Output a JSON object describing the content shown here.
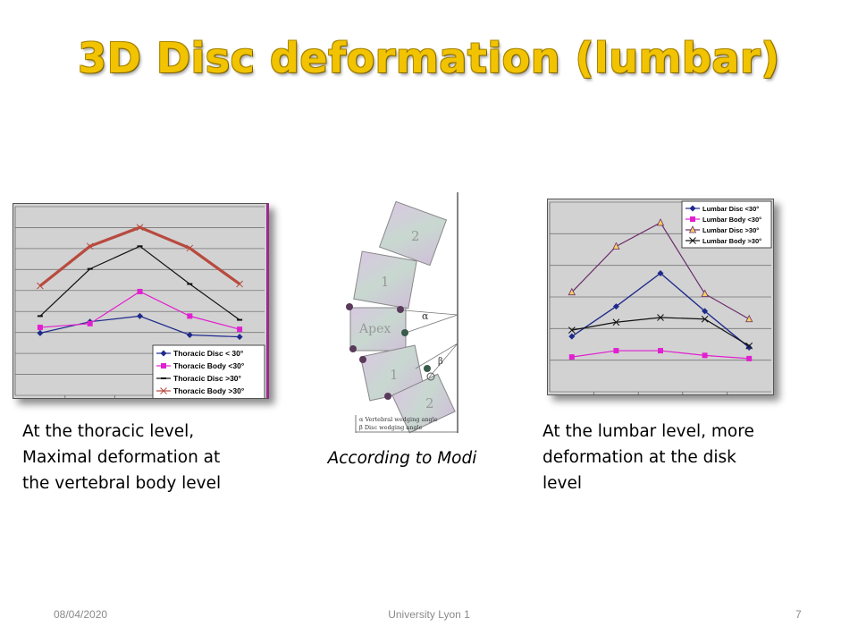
{
  "slide": {
    "title": "3D Disc deformation (lumbar)",
    "caption_left": [
      "At the thoracic level,",
      "Maximal deformation at",
      "the vertebral body level"
    ],
    "caption_mid": "According to Modi",
    "caption_right": [
      "At the lumbar level, more",
      "deformation at the disk",
      "level"
    ],
    "footer": {
      "date": "08/04/2020",
      "organization": "University Lyon 1",
      "page": "7"
    }
  },
  "diagram": {
    "labels": [
      "2",
      "1",
      "Apex",
      "1",
      "2"
    ],
    "angle_labels": [
      "α",
      "β"
    ],
    "legend": [
      "α Vertebral wedging angle",
      "β Disc wedging angle"
    ]
  },
  "colors": {
    "title": "#f2c300",
    "chart_bg": "#d2d2d2"
  },
  "chart_data": [
    {
      "type": "line",
      "x": [
        1,
        2,
        3,
        4,
        5
      ],
      "ylim": [
        0,
        10
      ],
      "grid": true,
      "legend_position": "bottom-right",
      "series": [
        {
          "name": "Thoracic Disc < 30°",
          "color": "#1f2a8c",
          "marker": "diamond",
          "values": [
            3.3,
            3.9,
            4.2,
            3.2,
            3.1
          ]
        },
        {
          "name": "Thoracic Body <30°",
          "color": "#e020d0",
          "marker": "square",
          "values": [
            3.6,
            3.8,
            5.5,
            4.2,
            3.5
          ]
        },
        {
          "name": "Thoracic Disc >30°",
          "color": "#111111",
          "marker": "dash",
          "values": [
            4.2,
            6.7,
            7.9,
            5.9,
            4.0
          ]
        },
        {
          "name": "Thoracic Body >30°",
          "color": "#b84a3e",
          "marker": "cross",
          "values": [
            5.8,
            7.9,
            8.9,
            7.8,
            5.9
          ]
        }
      ]
    },
    {
      "type": "line",
      "x": [
        1,
        2,
        3,
        4,
        5
      ],
      "ylim": [
        0,
        12
      ],
      "grid": true,
      "legend_position": "top-right",
      "series": [
        {
          "name": "Lumbar Disc <30°",
          "color": "#1f2a8c",
          "marker": "diamond",
          "values": [
            3.5,
            5.4,
            7.5,
            5.1,
            2.8
          ]
        },
        {
          "name": "Lumbar Body <30°",
          "color": "#e020d0",
          "marker": "square",
          "values": [
            2.2,
            2.6,
            2.6,
            2.3,
            2.1
          ]
        },
        {
          "name": "Lumbar Disc >30°",
          "color": "#6b2d6b",
          "marker": "triangle",
          "values": [
            6.3,
            9.2,
            10.7,
            6.2,
            4.6
          ]
        },
        {
          "name": "Lumbar Body >30°",
          "color": "#111111",
          "marker": "x",
          "values": [
            3.9,
            4.4,
            4.7,
            4.6,
            2.9
          ]
        }
      ]
    }
  ]
}
